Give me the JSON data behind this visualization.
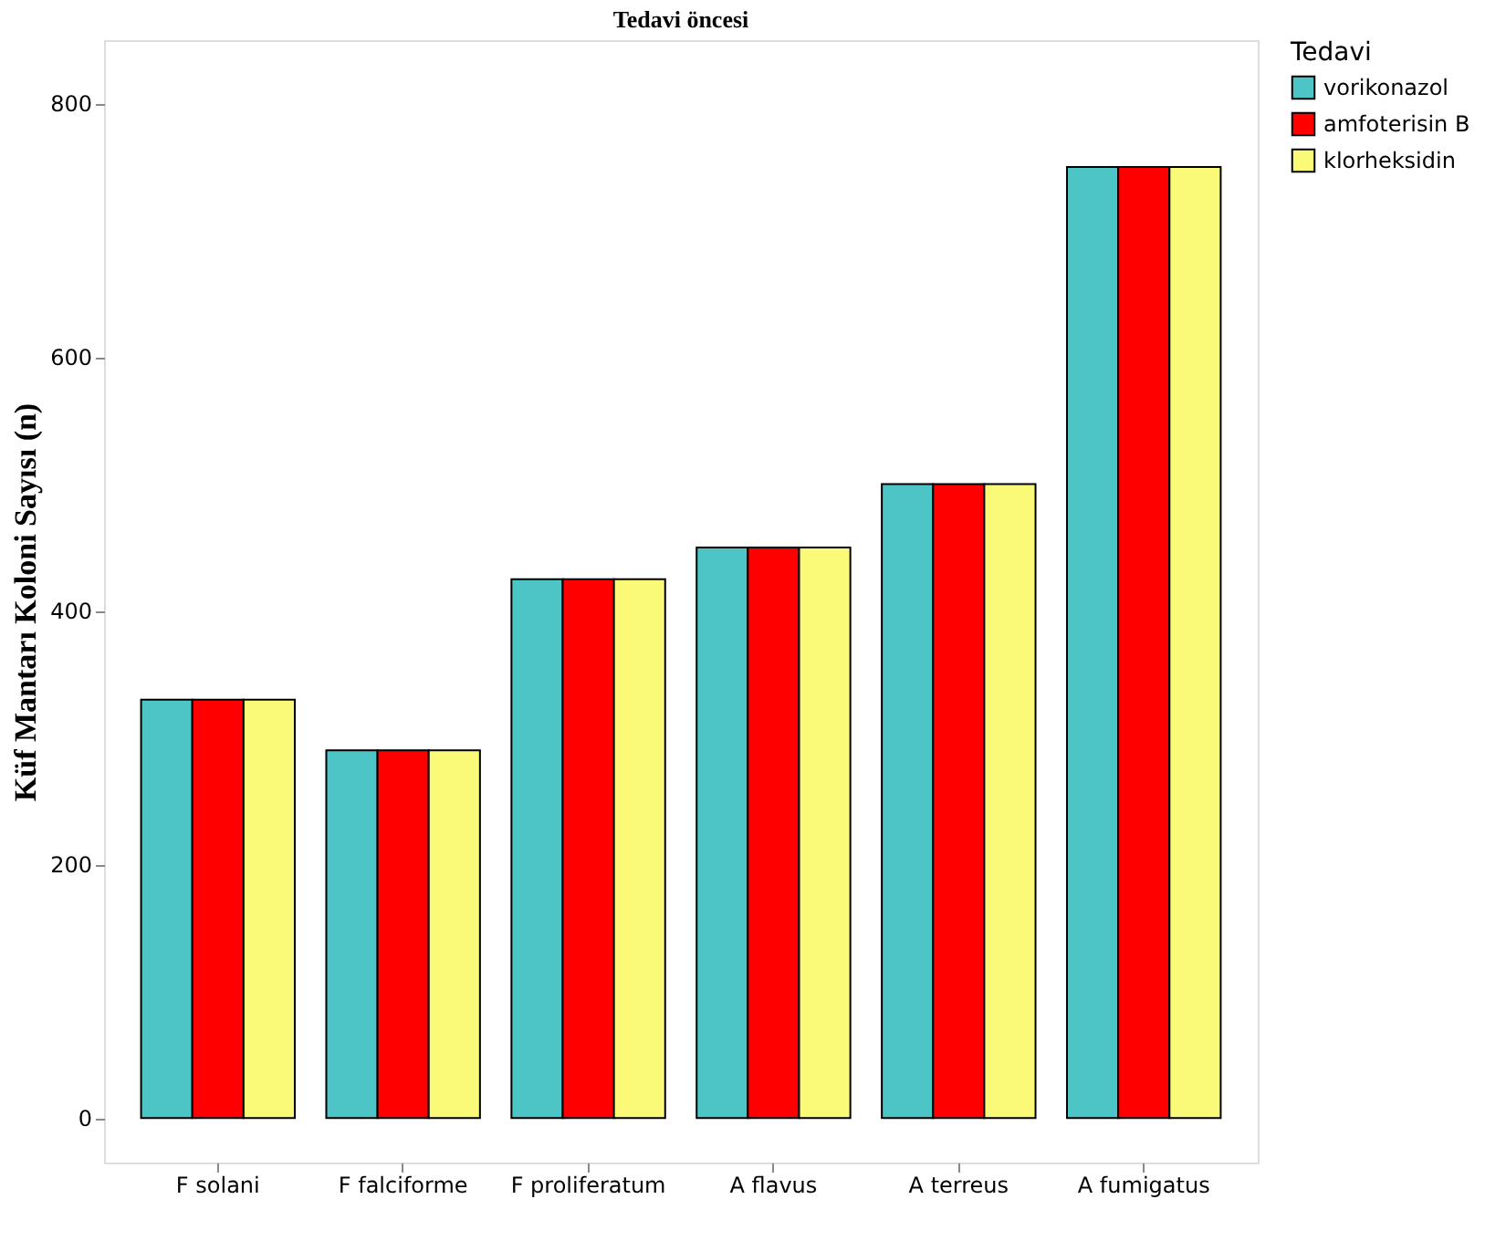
{
  "chart_data": {
    "type": "bar",
    "title": "Tedavi öncesi",
    "ylabel": "Küf Mantarı Koloni Sayısı (n)",
    "legend_title": "Tedavi",
    "categories": [
      "F solani",
      "F falciforme",
      "F proliferatum",
      "A flavus",
      "A terreus",
      "A fumigatus"
    ],
    "series": [
      {
        "name": "vorikonazol",
        "color": "#4dc4c6",
        "values": [
          330,
          290,
          425,
          450,
          500,
          750
        ]
      },
      {
        "name": "amfoterisin B",
        "color": "#ff0000",
        "values": [
          330,
          290,
          425,
          450,
          500,
          750
        ]
      },
      {
        "name": "klorheksidin",
        "color": "#fafa78",
        "values": [
          330,
          290,
          425,
          450,
          500,
          750
        ]
      }
    ],
    "ylim": [
      -35,
      850
    ],
    "yticks": [
      0,
      200,
      400,
      600,
      800
    ],
    "grid": false,
    "legend": "right"
  }
}
